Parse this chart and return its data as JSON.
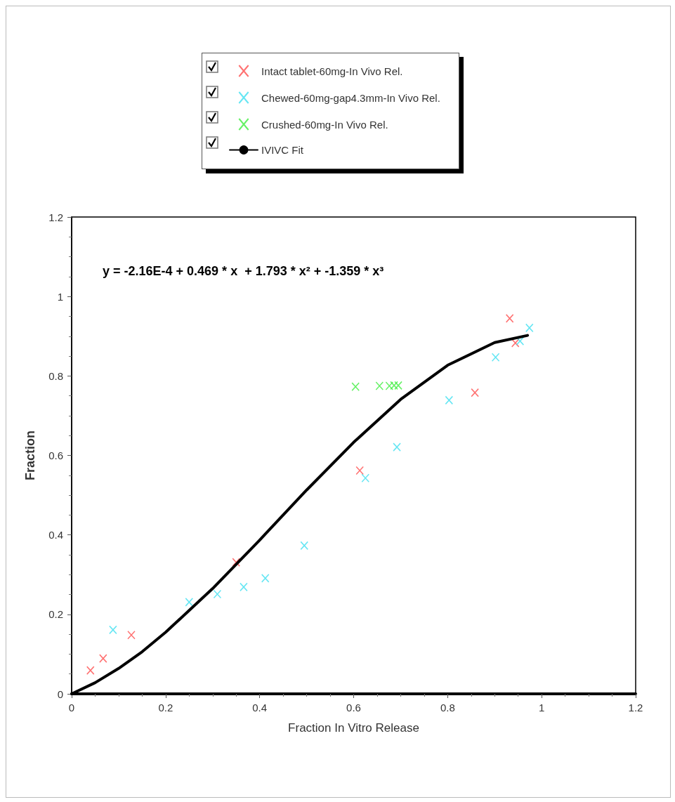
{
  "chart_data": {
    "type": "scatter",
    "xlabel": "Fraction In Vitro Release",
    "ylabel": "Fraction",
    "annotations": [
      "y = -2.16E-4 + 0.469 * x  + 1.793 * x² + -1.359 * x³"
    ],
    "xlim": [
      0,
      1.2
    ],
    "xticks": [
      0,
      0.2,
      0.4,
      0.6,
      0.8,
      1,
      1.2
    ],
    "ylim": [
      0,
      1.2
    ],
    "yticks": [
      0,
      0.2,
      0.4,
      0.6,
      0.8,
      1,
      1.2
    ],
    "grid": false,
    "legend": "top",
    "marker": "cross",
    "series": [
      {
        "name": "Intact tablet-60mg-In Vivo Rel.",
        "color": "#ff4d4d",
        "x": [
          0.04,
          0.067,
          0.127,
          0.35,
          0.613,
          0.858,
          0.932,
          0.944
        ],
        "values": [
          0.059,
          0.089,
          0.148,
          0.331,
          0.562,
          0.758,
          0.945,
          0.883
        ]
      },
      {
        "name": "Chewed-60mg-gap4.3mm-In Vivo Rel.",
        "color": "#40e0f0",
        "x": [
          0.088,
          0.25,
          0.31,
          0.366,
          0.412,
          0.495,
          0.625,
          0.692,
          0.803,
          0.902,
          0.954,
          0.974
        ],
        "values": [
          0.161,
          0.231,
          0.251,
          0.269,
          0.291,
          0.373,
          0.543,
          0.621,
          0.739,
          0.847,
          0.888,
          0.921
        ]
      },
      {
        "name": "Crushed-60mg-In Vivo Rel.",
        "color": "#40ee40",
        "x": [
          0.604,
          0.655,
          0.676,
          0.686,
          0.695
        ],
        "values": [
          0.773,
          0.775,
          0.775,
          0.776,
          0.776
        ]
      },
      {
        "name": "IVIVC Fit",
        "type": "line",
        "color": "#000000",
        "marker": "none",
        "x": [
          0,
          0.05,
          0.1,
          0.15,
          0.2,
          0.3,
          0.4,
          0.5,
          0.6,
          0.7,
          0.8,
          0.9,
          0.97
        ],
        "values": [
          0,
          0.028,
          0.064,
          0.106,
          0.155,
          0.265,
          0.387,
          0.513,
          0.633,
          0.741,
          0.827,
          0.884,
          0.902
        ]
      }
    ]
  }
}
